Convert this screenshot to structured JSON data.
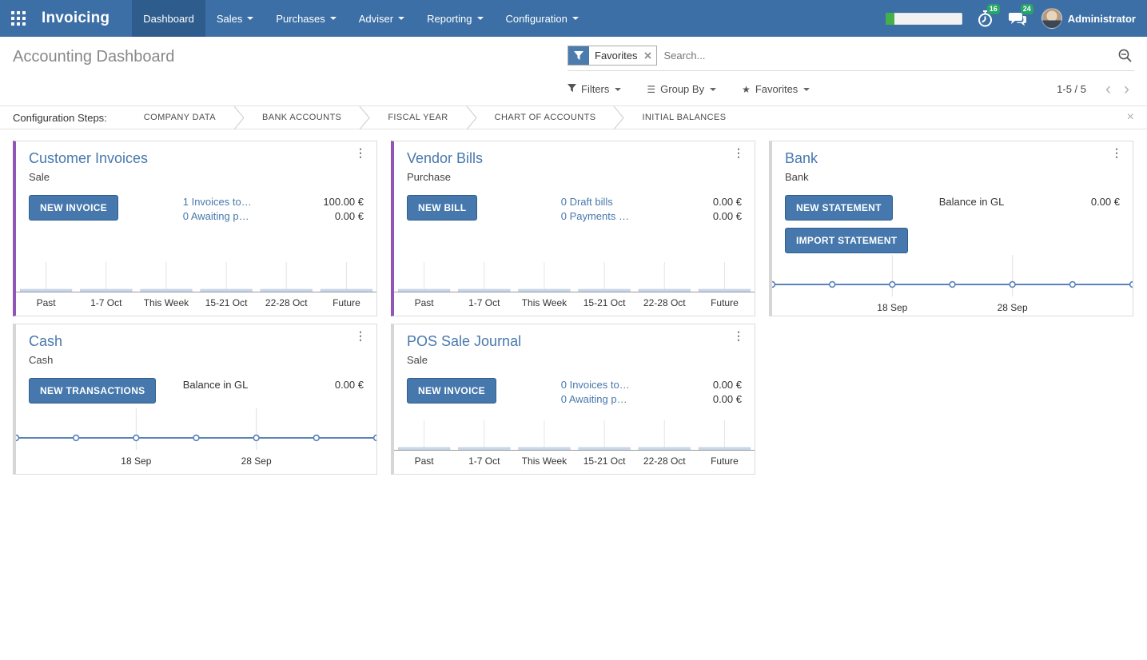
{
  "icons": {
    "kebab": "⋮",
    "close": "×",
    "star": "★",
    "group_by": "☰",
    "prev": "‹",
    "next": "›"
  },
  "colors": {
    "navbar": "#3b6fa5",
    "navbar_active": "#2e5c8c",
    "button_blue": "#4678ad",
    "link_blue": "#4878ad",
    "accent_purple": "#9156b5",
    "accent_gray": "#d6d6d6",
    "badge_green": "#28a36c",
    "chart_line": "#5b82ba",
    "chart_bar": "#c9d8eb"
  },
  "navbar": {
    "brand": "Invoicing",
    "menu": [
      {
        "label": "Dashboard"
      },
      {
        "label": "Sales"
      },
      {
        "label": "Purchases"
      },
      {
        "label": "Adviser"
      },
      {
        "label": "Reporting"
      },
      {
        "label": "Configuration"
      }
    ],
    "systray": {
      "timer_badge": "16",
      "chat_badge": "24",
      "user": "Administrator"
    }
  },
  "control_panel": {
    "title": "Accounting Dashboard",
    "search": {
      "facet": "Favorites",
      "placeholder": "Search..."
    },
    "filters_label": "Filters",
    "group_by_label": "Group By",
    "favorites_label": "Favorites",
    "pager": "1-5 / 5"
  },
  "config_steps": {
    "label": "Configuration Steps:",
    "steps": [
      "COMPANY DATA",
      "BANK ACCOUNTS",
      "FISCAL YEAR",
      "CHART OF ACCOUNTS",
      "INITIAL BALANCES"
    ]
  },
  "cards": [
    {
      "title": "Customer Invoices",
      "subtitle": "Sale",
      "accent_style": "border-left-color:#9156b5",
      "buttons": [
        "NEW INVOICE"
      ],
      "links": [
        "1 Invoices to…",
        "0 Awaiting p…"
      ],
      "amounts": [
        "100.00 €",
        "0.00 €"
      ]
    },
    {
      "title": "Vendor Bills",
      "subtitle": "Purchase",
      "accent_style": "border-left-color:#9156b5",
      "buttons": [
        "NEW BILL"
      ],
      "links": [
        "0 Draft bills",
        "0 Payments …"
      ],
      "amounts": [
        "0.00 €",
        "0.00 €"
      ]
    },
    {
      "title": "Bank",
      "subtitle": "Bank",
      "accent_style": "border-left-color:#d6d6d6",
      "buttons": [
        "NEW STATEMENT",
        "IMPORT STATEMENT"
      ],
      "stat_label": "Balance in GL",
      "amounts": [
        "0.00 €"
      ]
    },
    {
      "title": "Cash",
      "subtitle": "Cash",
      "accent_style": "border-left-color:#d6d6d6",
      "buttons": [
        "NEW TRANSACTIONS"
      ],
      "stat_label": "Balance in GL",
      "amounts": [
        "0.00 €"
      ]
    },
    {
      "title": "POS Sale Journal",
      "subtitle": "Sale",
      "accent_style": "border-left-color:#d6d6d6",
      "buttons": [
        "NEW INVOICE"
      ],
      "links": [
        "0 Invoices to…",
        "0 Awaiting p…"
      ],
      "amounts": [
        "0.00 €",
        "0.00 €"
      ]
    }
  ],
  "chart_data": [
    {
      "type": "bar",
      "title": "Customer Invoices",
      "categories": [
        "Past",
        "1-7 Oct",
        "This Week",
        "15-21 Oct",
        "22-28 Oct",
        "Future"
      ],
      "values": [
        0,
        0,
        0,
        0,
        0,
        0
      ],
      "ylim": [
        0,
        1
      ],
      "color": "#c9d8eb",
      "grid": "ticks-only"
    },
    {
      "type": "bar",
      "title": "Vendor Bills",
      "categories": [
        "Past",
        "1-7 Oct",
        "This Week",
        "15-21 Oct",
        "22-28 Oct",
        "Future"
      ],
      "values": [
        0,
        0,
        0,
        0,
        0,
        0
      ],
      "ylim": [
        0,
        1
      ],
      "color": "#c9d8eb",
      "grid": "ticks-only"
    },
    {
      "type": "line",
      "title": "Bank",
      "x_tick_labels": [
        "18 Sep",
        "28 Sep"
      ],
      "num_points": 7,
      "values": [
        0,
        0,
        0,
        0,
        0,
        0,
        0
      ],
      "color": "#5b82ba",
      "grid": "x-ticks"
    },
    {
      "type": "line",
      "title": "Cash",
      "x_tick_labels": [
        "18 Sep",
        "28 Sep"
      ],
      "num_points": 7,
      "values": [
        0,
        0,
        0,
        0,
        0,
        0,
        0
      ],
      "color": "#5b82ba",
      "grid": "x-ticks"
    },
    {
      "type": "bar",
      "title": "POS Sale Journal",
      "categories": [
        "Past",
        "1-7 Oct",
        "This Week",
        "15-21 Oct",
        "22-28 Oct",
        "Future"
      ],
      "values": [
        0,
        0,
        0,
        0,
        0,
        0
      ],
      "ylim": [
        0,
        1
      ],
      "color": "#c9d8eb",
      "grid": "ticks-only"
    }
  ]
}
